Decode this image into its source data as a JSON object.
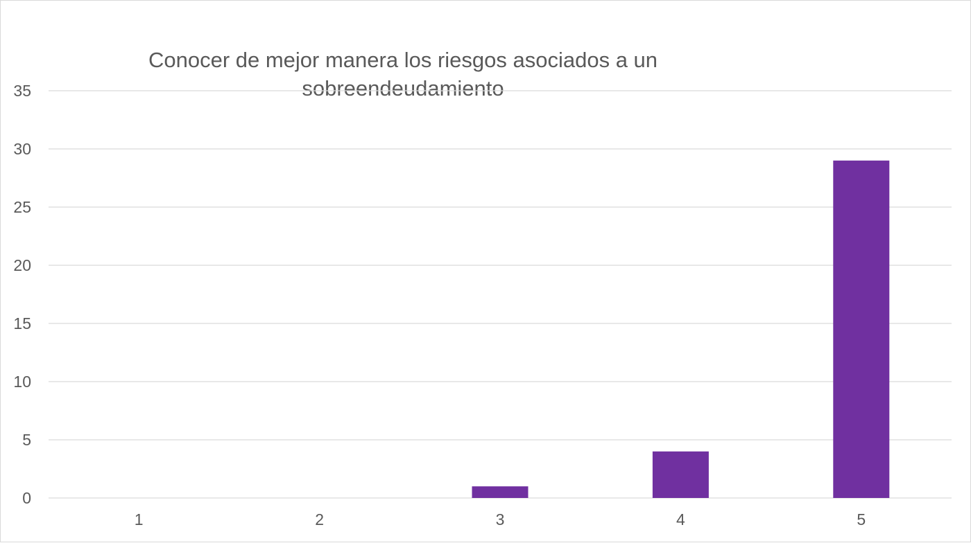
{
  "chart_data": {
    "type": "bar",
    "title_lines": [
      "Conocer de mejor manera los riesgos asociados a un",
      "sobreendeudamiento"
    ],
    "categories": [
      "1",
      "2",
      "3",
      "4",
      "5"
    ],
    "values": [
      0,
      0,
      1,
      4,
      29
    ],
    "ylim": [
      0,
      35
    ],
    "yticks": [
      "0",
      "5",
      "10",
      "15",
      "20",
      "25",
      "30",
      "35"
    ],
    "xlabel": "",
    "ylabel": "",
    "grid": true,
    "legend": "none",
    "bar_color": "#7030A0",
    "grid_color": "#D9D9D9",
    "text_color": "#595959"
  }
}
